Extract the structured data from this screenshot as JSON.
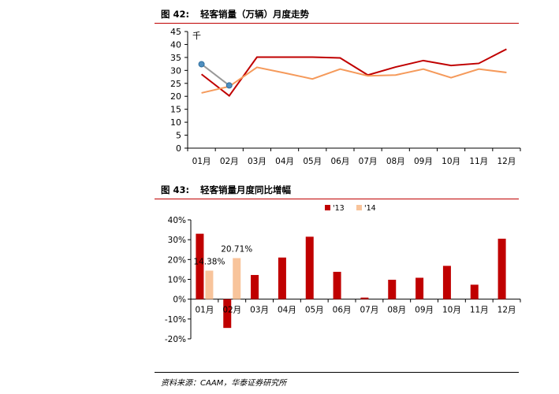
{
  "figure1": {
    "number": "图 42:",
    "title": "轻客销量（万辆）月度走势",
    "chart_data": {
      "type": "line",
      "categories": [
        "01月",
        "02月",
        "03月",
        "04月",
        "05月",
        "06月",
        "07月",
        "08月",
        "09月",
        "10月",
        "11月",
        "12月"
      ],
      "ylabel": "千",
      "ylim": [
        0,
        45
      ],
      "yticks": [
        0,
        5,
        10,
        15,
        20,
        25,
        30,
        35,
        40,
        45
      ],
      "series": [
        {
          "name": "",
          "color": "#c00000",
          "values": [
            28.5,
            20.2,
            35.1,
            35.1,
            35.1,
            34.8,
            28.2,
            31.3,
            33.8,
            31.9,
            32.7,
            38.2
          ]
        },
        {
          "name": "",
          "color": "#f59a5b",
          "values": [
            21.3,
            23.8,
            31.2,
            29.0,
            26.7,
            30.5,
            27.9,
            28.2,
            30.5,
            27.2,
            30.5,
            29.2
          ]
        }
      ],
      "annotation": {
        "color": "#999999",
        "marker_color": "#4f8fbf",
        "from": {
          "x": "01月",
          "y": 32.4
        },
        "to": {
          "x": "02月",
          "y": 24.2
        }
      }
    }
  },
  "figure2": {
    "number": "图 43:",
    "title": "轻客销量月度同比增幅",
    "chart_data": {
      "type": "bar",
      "categories": [
        "01月",
        "02月",
        "03月",
        "04月",
        "05月",
        "06月",
        "07月",
        "08月",
        "09月",
        "10月",
        "11月",
        "12月"
      ],
      "ylim": [
        -20,
        40
      ],
      "yticks": [
        -20,
        -10,
        0,
        10,
        20,
        30,
        40
      ],
      "ytick_labels": [
        "-20%",
        "-10%",
        "0%",
        "10%",
        "20%",
        "30%",
        "40%"
      ],
      "series": [
        {
          "name": "'13",
          "color": "#c00000",
          "values": [
            33.0,
            -14.5,
            12.2,
            21.0,
            31.5,
            13.8,
            0.8,
            9.8,
            10.8,
            16.8,
            7.3,
            30.5
          ]
        },
        {
          "name": "'14",
          "color": "#f8c49b",
          "values": [
            14.38,
            20.71,
            null,
            null,
            null,
            null,
            null,
            null,
            null,
            null,
            null,
            null
          ]
        }
      ],
      "data_labels": [
        {
          "series": 1,
          "index": 0,
          "text": "14.38%"
        },
        {
          "series": 1,
          "index": 1,
          "text": "20.71%"
        }
      ]
    }
  },
  "source": "资料来源：CAAM，华泰证券研究所"
}
